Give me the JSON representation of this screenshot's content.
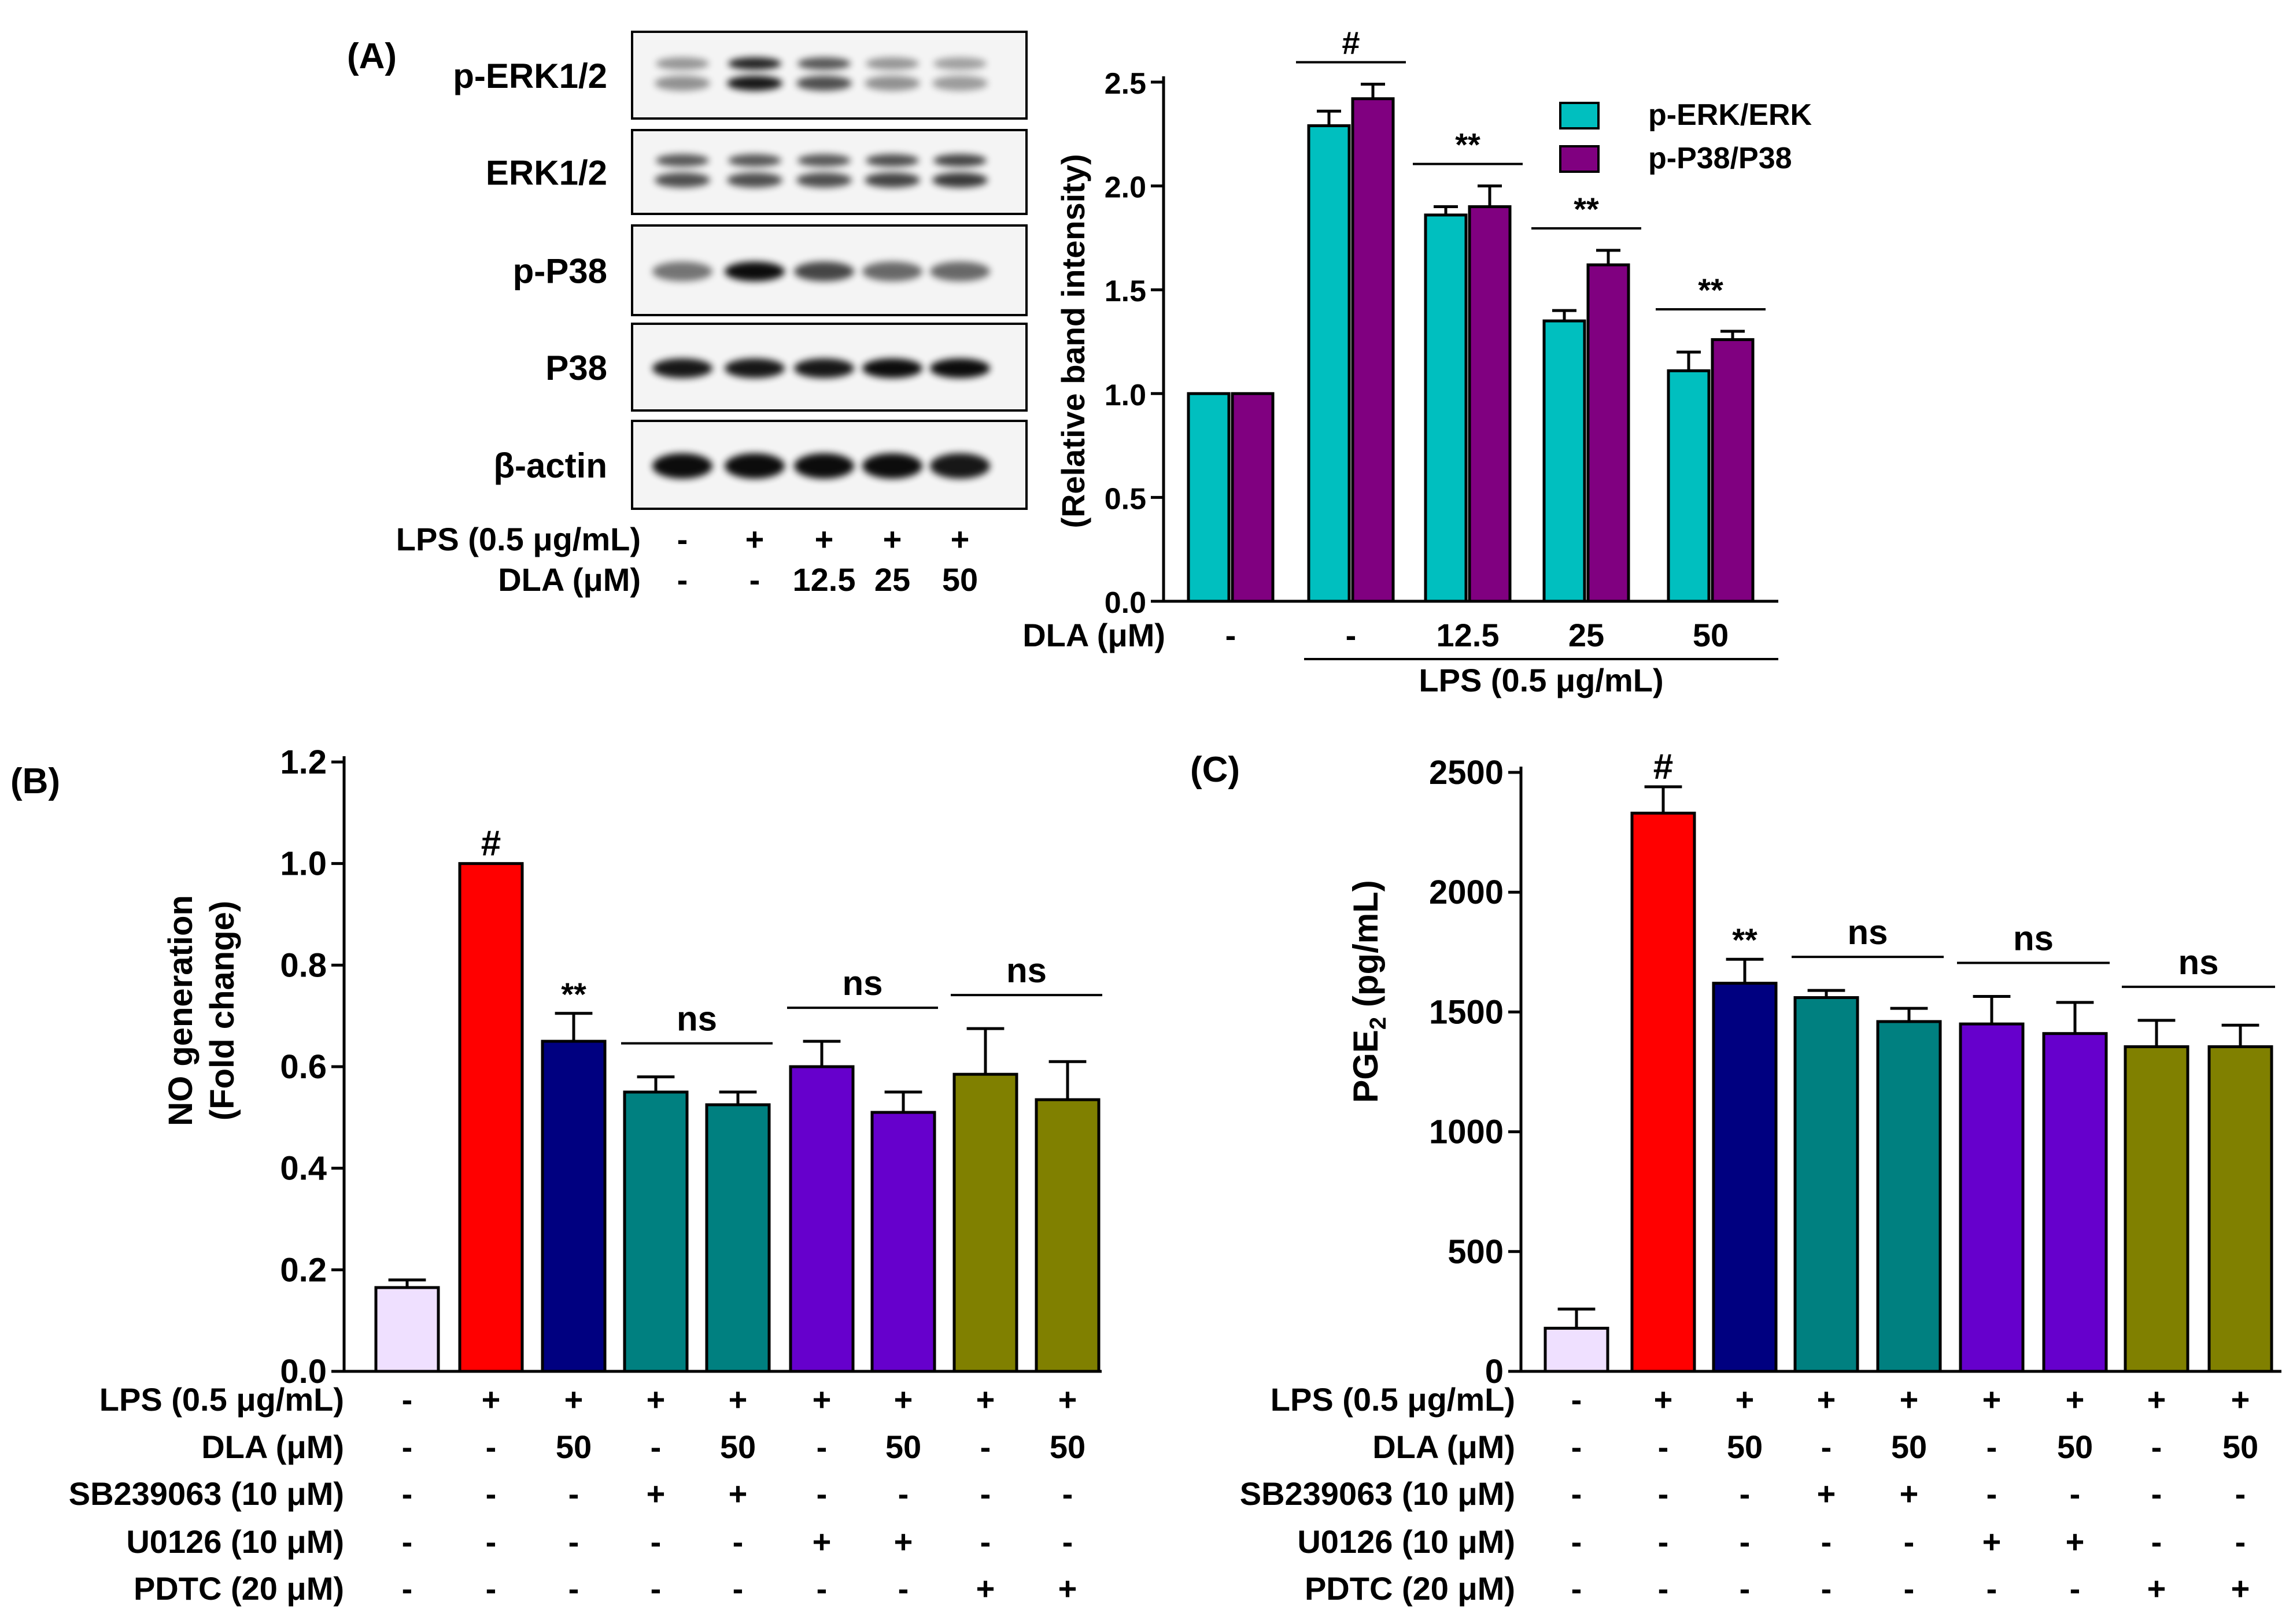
{
  "colors": {
    "teal_light": "#00bfbf",
    "purple_dark": "#800080",
    "lavender": "#efe0ff",
    "red": "#ff0000",
    "navy": "#000080",
    "teal": "#008080",
    "violet": "#6600cc",
    "olive": "#808000",
    "axis": "#000000"
  },
  "panel_a": {
    "label": "(A)",
    "blot": {
      "rows": [
        "p-ERK1/2",
        "ERK1/2",
        "p-P38",
        "P38",
        "β-actin"
      ],
      "intensity": [
        [
          0.45,
          1.0,
          0.75,
          0.45,
          0.4
        ],
        [
          0.75,
          0.75,
          0.75,
          0.8,
          0.85
        ],
        [
          0.55,
          1.0,
          0.75,
          0.6,
          0.6
        ],
        [
          0.95,
          0.95,
          0.95,
          1.0,
          1.0
        ],
        [
          1.0,
          1.0,
          1.0,
          1.0,
          0.95
        ]
      ],
      "treatments": [
        {
          "label": "LPS (0.5 μg/mL)",
          "values": [
            "-",
            "+",
            "+",
            "+",
            "+"
          ]
        },
        {
          "label": "DLA (μM)",
          "values": [
            "-",
            "-",
            "12.5",
            "25",
            "50"
          ]
        }
      ]
    }
  },
  "panel_b_label": "(B)",
  "panel_c_label": "(C)",
  "chart_data": [
    {
      "id": "A",
      "type": "bar",
      "ylabel": "(Relative band intensity)",
      "ylim": [
        0,
        2.5
      ],
      "yticks": [
        "0.0",
        "0.5",
        "1.0",
        "1.5",
        "2.0",
        "2.5"
      ],
      "ytick_values": [
        0,
        0.5,
        1.0,
        1.5,
        2.0,
        2.5
      ],
      "categories": [
        "-",
        "-",
        "12.5",
        "25",
        "50"
      ],
      "xrow_label": "DLA (μM)",
      "xgroup_label": "LPS (0.5 μg/mL)",
      "series": [
        {
          "name": "p-ERK/ERK",
          "values": [
            1.0,
            2.29,
            1.86,
            1.35,
            1.11
          ],
          "errors": [
            0,
            0.07,
            0.04,
            0.05,
            0.09
          ]
        },
        {
          "name": "p-P38/P38",
          "values": [
            1.0,
            2.42,
            1.9,
            1.62,
            1.26
          ],
          "errors": [
            0,
            0.07,
            0.1,
            0.07,
            0.04
          ]
        }
      ],
      "annotations": [
        {
          "text": "#",
          "from": 1,
          "to": 1
        },
        {
          "text": "**",
          "from": 2,
          "to": 2
        },
        {
          "text": "**",
          "from": 3,
          "to": 3
        },
        {
          "text": "**",
          "from": 4,
          "to": 4
        }
      ]
    },
    {
      "id": "B",
      "type": "bar",
      "ylabel": [
        "NO generation",
        "(Fold change)"
      ],
      "ylim": [
        0,
        1.2
      ],
      "yticks": [
        "0.0",
        "0.2",
        "0.4",
        "0.6",
        "0.8",
        "1.0",
        "1.2"
      ],
      "ytick_values": [
        0,
        0.2,
        0.4,
        0.6,
        0.8,
        1.0,
        1.2
      ],
      "values": [
        0.165,
        1.0,
        0.65,
        0.55,
        0.525,
        0.6,
        0.51,
        0.585,
        0.535
      ],
      "errors": [
        0.015,
        0,
        0.055,
        0.03,
        0.025,
        0.05,
        0.04,
        0.09,
        0.075
      ],
      "bar_colors": [
        "lavender",
        "red",
        "navy",
        "teal",
        "teal",
        "violet",
        "violet",
        "olive",
        "olive"
      ],
      "annotations": [
        {
          "text": "#",
          "from": 1,
          "to": 1,
          "line": false
        },
        {
          "text": "**",
          "from": 2,
          "to": 2,
          "line": false
        },
        {
          "text": "ns",
          "from": 3,
          "to": 4,
          "line": true
        },
        {
          "text": "ns",
          "from": 5,
          "to": 6,
          "line": true
        },
        {
          "text": "ns",
          "from": 7,
          "to": 8,
          "line": true
        }
      ],
      "treatments": [
        {
          "label": "LPS (0.5 μg/mL)",
          "values": [
            "-",
            "+",
            "+",
            "+",
            "+",
            "+",
            "+",
            "+",
            "+"
          ]
        },
        {
          "label": "DLA (μM)",
          "values": [
            "-",
            "-",
            "50",
            "-",
            "50",
            "-",
            "50",
            "-",
            "50"
          ]
        },
        {
          "label": "SB239063 (10 μM)",
          "values": [
            "-",
            "-",
            "-",
            "+",
            "+",
            "-",
            "-",
            "-",
            "-"
          ]
        },
        {
          "label": "U0126 (10 μM)",
          "values": [
            "-",
            "-",
            "-",
            "-",
            "-",
            "+",
            "+",
            "-",
            "-"
          ]
        },
        {
          "label": "PDTC (20 μM)",
          "values": [
            "-",
            "-",
            "-",
            "-",
            "-",
            "-",
            "-",
            "+",
            "+"
          ]
        }
      ]
    },
    {
      "id": "C",
      "type": "bar",
      "ylabel_main": "PGE",
      "ylabel_sub": "2",
      "ylabel_unit": " (pg/mL)",
      "ylim": [
        0,
        2500
      ],
      "yticks": [
        "0",
        "500",
        "1000",
        "1500",
        "2000",
        "2500"
      ],
      "ytick_values": [
        0,
        500,
        1000,
        1500,
        2000,
        2500
      ],
      "values": [
        180,
        2330,
        1620,
        1560,
        1460,
        1450,
        1410,
        1355,
        1355
      ],
      "errors": [
        80,
        110,
        100,
        30,
        55,
        115,
        130,
        110,
        90
      ],
      "bar_colors": [
        "lavender",
        "red",
        "navy",
        "teal",
        "teal",
        "violet",
        "violet",
        "olive",
        "olive"
      ],
      "annotations": [
        {
          "text": "#",
          "from": 1,
          "to": 1,
          "line": false
        },
        {
          "text": "**",
          "from": 2,
          "to": 2,
          "line": false
        },
        {
          "text": "ns",
          "from": 3,
          "to": 4,
          "line": true
        },
        {
          "text": "ns",
          "from": 5,
          "to": 6,
          "line": true
        },
        {
          "text": "ns",
          "from": 7,
          "to": 8,
          "line": true
        }
      ],
      "treatments": [
        {
          "label": "LPS (0.5 μg/mL)",
          "values": [
            "-",
            "+",
            "+",
            "+",
            "+",
            "+",
            "+",
            "+",
            "+"
          ]
        },
        {
          "label": "DLA (μM)",
          "values": [
            "-",
            "-",
            "50",
            "-",
            "50",
            "-",
            "50",
            "-",
            "50"
          ]
        },
        {
          "label": "SB239063 (10 μM)",
          "values": [
            "-",
            "-",
            "-",
            "+",
            "+",
            "-",
            "-",
            "-",
            "-"
          ]
        },
        {
          "label": "U0126 (10 μM)",
          "values": [
            "-",
            "-",
            "-",
            "-",
            "-",
            "+",
            "+",
            "-",
            "-"
          ]
        },
        {
          "label": "PDTC (20 μM)",
          "values": [
            "-",
            "-",
            "-",
            "-",
            "-",
            "-",
            "-",
            "+",
            "+"
          ]
        }
      ]
    }
  ]
}
